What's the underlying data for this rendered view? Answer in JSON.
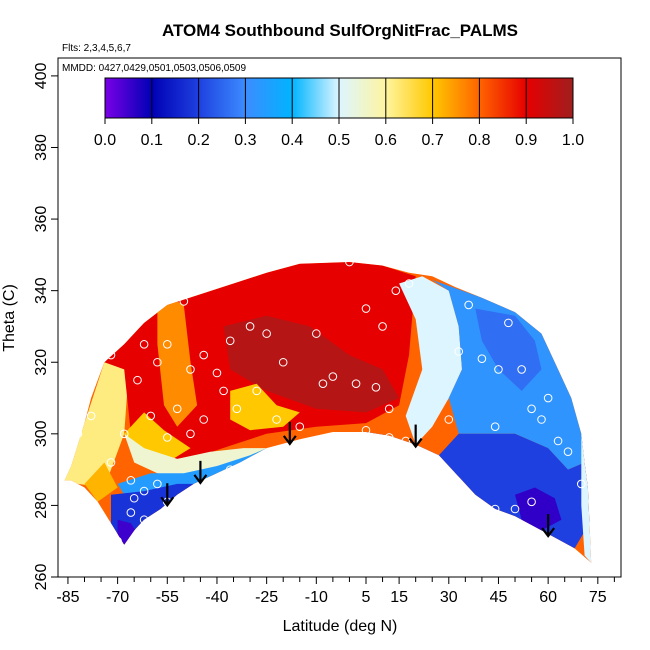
{
  "chart_data": {
    "type": "heatmap",
    "title": "ATOM4 Southbound SulfOrgNitFrac_PALMS",
    "flights_note": "Flts: 2,3,4,5,6,7",
    "dates_note": "MMDD: 0427,0429,0501,0503,0506,0509",
    "xlabel": "Latitude (deg N)",
    "ylabel": "Theta (C)",
    "xlim": [
      -88,
      82
    ],
    "ylim": [
      260,
      405
    ],
    "x_ticks": [
      "-85",
      "-70",
      "-55",
      "-40",
      "-25",
      "-10",
      "5",
      "15",
      "30",
      "45",
      "60",
      "75"
    ],
    "x_tick_values": [
      -85,
      -70,
      -55,
      -40,
      -25,
      -10,
      5,
      15,
      30,
      45,
      60,
      75
    ],
    "y_ticks": [
      "260",
      "280",
      "300",
      "320",
      "340",
      "360",
      "380",
      "400"
    ],
    "y_tick_values": [
      260,
      280,
      300,
      320,
      340,
      360,
      380,
      400
    ],
    "colorbar": {
      "range": [
        0,
        1
      ],
      "tick_labels": [
        "0.0",
        "0.1",
        "0.2",
        "0.3",
        "0.4",
        "0.5",
        "0.6",
        "0.7",
        "0.8",
        "0.9",
        "1.0"
      ],
      "colors": [
        "#7a00e6",
        "#0000b4",
        "#1e40e0",
        "#3c8cff",
        "#00b4ff",
        "#dcf5ff",
        "#fff5a0",
        "#ffc800",
        "#ff6400",
        "#e60000",
        "#a01e1e"
      ]
    },
    "coverage_outline": [
      [
        -86,
        287
      ],
      [
        -84,
        291
      ],
      [
        -82,
        297
      ],
      [
        -80,
        303
      ],
      [
        -78,
        310
      ],
      [
        -76,
        315
      ],
      [
        -74,
        320
      ],
      [
        -68,
        325
      ],
      [
        -62,
        331
      ],
      [
        -55,
        336
      ],
      [
        -45,
        339
      ],
      [
        -35,
        342
      ],
      [
        -25,
        345
      ],
      [
        -15,
        347.5
      ],
      [
        0,
        348
      ],
      [
        10,
        347
      ],
      [
        18,
        345
      ],
      [
        25,
        344
      ],
      [
        32,
        341
      ],
      [
        40,
        338
      ],
      [
        50,
        334
      ],
      [
        58,
        328
      ],
      [
        63,
        318
      ],
      [
        67,
        310
      ],
      [
        70,
        300
      ],
      [
        71,
        292
      ],
      [
        72,
        285
      ],
      [
        72.5,
        275
      ],
      [
        73,
        264
      ],
      [
        68,
        268
      ],
      [
        62,
        271
      ],
      [
        56,
        274
      ],
      [
        50,
        277
      ],
      [
        44,
        279
      ],
      [
        38,
        283
      ],
      [
        33,
        288
      ],
      [
        27,
        294
      ],
      [
        20,
        297
      ],
      [
        12,
        299.5
      ],
      [
        5,
        300.5
      ],
      [
        -5,
        300.5
      ],
      [
        -15,
        298.5
      ],
      [
        -25,
        296
      ],
      [
        -33,
        292
      ],
      [
        -40,
        289
      ],
      [
        -47,
        286
      ],
      [
        -52,
        283
      ],
      [
        -57,
        279
      ],
      [
        -62,
        276
      ],
      [
        -65,
        273
      ],
      [
        -68,
        269
      ],
      [
        -72,
        275
      ],
      [
        -76,
        281
      ],
      [
        -80,
        285
      ],
      [
        -84,
        287
      ]
    ],
    "fields": [
      {
        "value": 0.62,
        "polygon": [
          [
            -86,
            287
          ],
          [
            -80,
            303
          ],
          [
            -74,
            320
          ],
          [
            -66,
            326
          ],
          [
            -68,
            300
          ],
          [
            -74,
            285
          ],
          [
            -82,
            286
          ]
        ]
      },
      {
        "value": 0.72,
        "polygon": [
          [
            -80,
            286
          ],
          [
            -74,
            292
          ],
          [
            -70,
            285
          ],
          [
            -76,
            281
          ]
        ]
      },
      {
        "value": 0.9,
        "polygon": [
          [
            -74,
            320
          ],
          [
            -62,
            331
          ],
          [
            -55,
            336
          ],
          [
            -45,
            339
          ],
          [
            -35,
            342
          ],
          [
            -25,
            345
          ],
          [
            -15,
            347.5
          ],
          [
            0,
            348
          ],
          [
            10,
            347
          ],
          [
            20,
            344
          ],
          [
            18,
            322
          ],
          [
            15,
            308
          ],
          [
            5,
            303
          ],
          [
            -10,
            302
          ],
          [
            -25,
            300
          ],
          [
            -35,
            297
          ],
          [
            -48,
            293
          ],
          [
            -58,
            291
          ],
          [
            -66,
            300
          ],
          [
            -68,
            318
          ]
        ]
      },
      {
        "value": 0.97,
        "polygon": [
          [
            -38,
            330
          ],
          [
            -25,
            333
          ],
          [
            -12,
            330
          ],
          [
            0,
            322
          ],
          [
            10,
            318
          ],
          [
            15,
            310
          ],
          [
            5,
            306
          ],
          [
            -10,
            307
          ],
          [
            -25,
            312
          ],
          [
            -36,
            318
          ]
        ]
      },
      {
        "value": 0.76,
        "polygon": [
          [
            -58,
            340
          ],
          [
            -50,
            336
          ],
          [
            -48,
            320
          ],
          [
            -46,
            308
          ],
          [
            -52,
            302
          ],
          [
            -56,
            308
          ],
          [
            -58,
            325
          ]
        ]
      },
      {
        "value": 0.7,
        "polygon": [
          [
            -36,
            312
          ],
          [
            -28,
            314
          ],
          [
            -22,
            308
          ],
          [
            -15,
            306
          ],
          [
            -20,
            302
          ],
          [
            -30,
            301
          ],
          [
            -36,
            304
          ]
        ]
      },
      {
        "value": 0.7,
        "polygon": [
          [
            -68,
            300
          ],
          [
            -62,
            306
          ],
          [
            -56,
            301
          ],
          [
            -48,
            296
          ],
          [
            -55,
            292
          ],
          [
            -64,
            294
          ]
        ]
      },
      {
        "value": 0.55,
        "polygon": [
          [
            -68,
            300
          ],
          [
            -62,
            296
          ],
          [
            -52,
            293
          ],
          [
            -42,
            295
          ],
          [
            -32,
            296
          ],
          [
            -25,
            296
          ],
          [
            -33,
            292
          ],
          [
            -40,
            289
          ],
          [
            -50,
            288
          ],
          [
            -58,
            289
          ],
          [
            -65,
            292
          ]
        ]
      },
      {
        "value": 0.34,
        "polygon": [
          [
            -70,
            286
          ],
          [
            -60,
            289
          ],
          [
            -50,
            289
          ],
          [
            -40,
            291
          ],
          [
            -30,
            294
          ],
          [
            -25,
            296
          ],
          [
            -33,
            292
          ],
          [
            -40,
            289
          ],
          [
            -47,
            286
          ],
          [
            -55,
            285
          ],
          [
            -62,
            284
          ],
          [
            -68,
            283
          ]
        ]
      },
      {
        "value": 0.18,
        "polygon": [
          [
            -72,
            283
          ],
          [
            -62,
            284
          ],
          [
            -52,
            286
          ],
          [
            -47,
            286
          ],
          [
            -52,
            283
          ],
          [
            -57,
            279
          ],
          [
            -62,
            276
          ],
          [
            -65,
            273
          ],
          [
            -68,
            269
          ],
          [
            -72,
            275
          ]
        ]
      },
      {
        "value": 0.05,
        "polygon": [
          [
            -70,
            276
          ],
          [
            -66,
            275
          ],
          [
            -64,
            272
          ],
          [
            -68,
            269
          ],
          [
            -70,
            271
          ]
        ]
      },
      {
        "value": 0.12,
        "polygon": [
          [
            -15,
            298.5
          ],
          [
            5,
            300.5
          ],
          [
            12,
            299.5
          ],
          [
            20,
            297
          ],
          [
            27,
            294
          ],
          [
            33,
            288
          ],
          [
            28,
            289
          ],
          [
            20,
            294
          ],
          [
            10,
            297
          ],
          [
            0,
            298
          ],
          [
            -10,
            298
          ]
        ]
      },
      {
        "value": 0.5,
        "polygon": [
          [
            15,
            342
          ],
          [
            22,
            344
          ],
          [
            30,
            340
          ],
          [
            33,
            330
          ],
          [
            34,
            318
          ],
          [
            30,
            310
          ],
          [
            25,
            302
          ],
          [
            20,
            297
          ],
          [
            17,
            305
          ],
          [
            22,
            318
          ],
          [
            20,
            332
          ]
        ]
      },
      {
        "value": 0.32,
        "polygon": [
          [
            25,
            343
          ],
          [
            40,
            338
          ],
          [
            50,
            334
          ],
          [
            58,
            328
          ],
          [
            63,
            318
          ],
          [
            67,
            310
          ],
          [
            70,
            300
          ],
          [
            71,
            292
          ],
          [
            66,
            290
          ],
          [
            60,
            296
          ],
          [
            50,
            300
          ],
          [
            40,
            300
          ],
          [
            33,
            300
          ],
          [
            30,
            310
          ],
          [
            34,
            318
          ],
          [
            33,
            330
          ],
          [
            30,
            340
          ]
        ]
      },
      {
        "value": 0.26,
        "polygon": [
          [
            38,
            335
          ],
          [
            50,
            333
          ],
          [
            56,
            326
          ],
          [
            58,
            318
          ],
          [
            52,
            312
          ],
          [
            45,
            318
          ],
          [
            40,
            326
          ]
        ]
      },
      {
        "value": 0.2,
        "polygon": [
          [
            27,
            294
          ],
          [
            33,
            300
          ],
          [
            40,
            300
          ],
          [
            50,
            300
          ],
          [
            60,
            296
          ],
          [
            66,
            290
          ],
          [
            71,
            292
          ],
          [
            72,
            285
          ],
          [
            72.5,
            275
          ],
          [
            68,
            268
          ],
          [
            62,
            271
          ],
          [
            56,
            274
          ],
          [
            50,
            277
          ],
          [
            44,
            279
          ],
          [
            38,
            283
          ],
          [
            33,
            288
          ]
        ]
      },
      {
        "value": 0.06,
        "polygon": [
          [
            50,
            283
          ],
          [
            56,
            285
          ],
          [
            62,
            282
          ],
          [
            64,
            276
          ],
          [
            58,
            273
          ],
          [
            52,
            276
          ]
        ]
      },
      {
        "value": 0.5,
        "polygon": [
          [
            70,
            300
          ],
          [
            71,
            292
          ],
          [
            72,
            285
          ],
          [
            72.5,
            275
          ],
          [
            73,
            264
          ],
          [
            71,
            266
          ],
          [
            70,
            280
          ]
        ]
      }
    ],
    "points": [
      [
        -82,
        300
      ],
      [
        -78,
        305
      ],
      [
        -72,
        322
      ],
      [
        -65,
        330
      ],
      [
        -62,
        325
      ],
      [
        -58,
        320
      ],
      [
        -55,
        325
      ],
      [
        -50,
        337
      ],
      [
        -48,
        318
      ],
      [
        -44,
        322
      ],
      [
        -40,
        317
      ],
      [
        -36,
        326
      ],
      [
        -30,
        330
      ],
      [
        -25,
        328
      ],
      [
        -20,
        320
      ],
      [
        -10,
        328
      ],
      [
        -5,
        316
      ],
      [
        0,
        348
      ],
      [
        5,
        335
      ],
      [
        10,
        330
      ],
      [
        14,
        340
      ],
      [
        18,
        342
      ],
      [
        -64,
        315
      ],
      [
        -60,
        305
      ],
      [
        -55,
        299
      ],
      [
        -52,
        307
      ],
      [
        -48,
        300
      ],
      [
        -44,
        304
      ],
      [
        -38,
        312
      ],
      [
        -34,
        307
      ],
      [
        -28,
        312
      ],
      [
        -22,
        304
      ],
      [
        -15,
        302
      ],
      [
        -8,
        314
      ],
      [
        2,
        314
      ],
      [
        8,
        313
      ],
      [
        12,
        307
      ],
      [
        -68,
        300
      ],
      [
        -72,
        292
      ],
      [
        -66,
        287
      ],
      [
        -62,
        284
      ],
      [
        -58,
        286
      ],
      [
        -55,
        281
      ],
      [
        -50,
        282
      ],
      [
        -45,
        283
      ],
      [
        -40,
        286
      ],
      [
        -36,
        290
      ],
      [
        -30,
        292
      ],
      [
        5,
        301
      ],
      [
        12,
        299
      ],
      [
        17,
        298
      ],
      [
        28,
        291
      ],
      [
        30,
        304
      ],
      [
        33,
        323
      ],
      [
        36,
        336
      ],
      [
        40,
        321
      ],
      [
        44,
        302
      ],
      [
        45,
        318
      ],
      [
        48,
        331
      ],
      [
        52,
        318
      ],
      [
        55,
        307
      ],
      [
        58,
        304
      ],
      [
        60,
        310
      ],
      [
        63,
        298
      ],
      [
        66,
        295
      ],
      [
        70,
        286
      ],
      [
        50,
        279
      ],
      [
        55,
        281
      ],
      [
        44,
        279
      ],
      [
        -70,
        270
      ],
      [
        -66,
        278
      ],
      [
        -62,
        276
      ],
      [
        -65,
        282
      ]
    ],
    "arrows": [
      -55,
      -45,
      -18,
      20,
      60
    ]
  }
}
